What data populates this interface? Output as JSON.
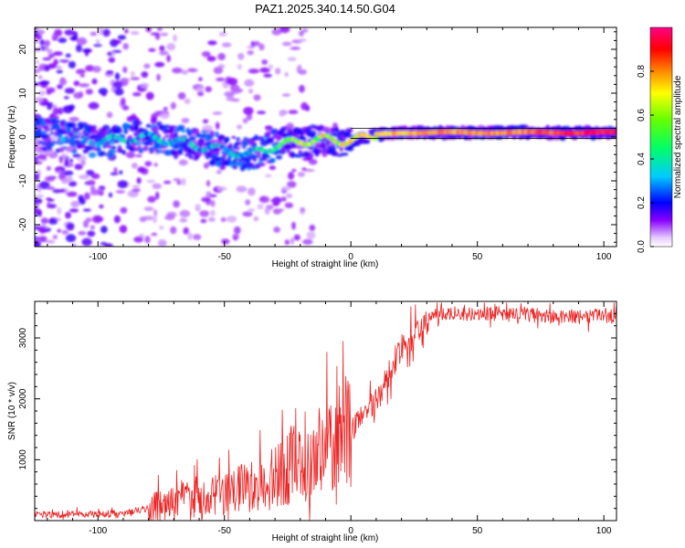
{
  "chart_data": [
    {
      "type": "heatmap",
      "title": "PAZ1.2025.340.14.50.G04",
      "xlabel": "Height of straight line (km)",
      "ylabel": "Frequency (Hz)",
      "xlim": [
        -125,
        105
      ],
      "ylim": [
        -25,
        25
      ],
      "xticks": [
        -100,
        -50,
        0,
        50,
        100
      ],
      "yticks": [
        -20,
        -10,
        0,
        10,
        20
      ],
      "colorbar": {
        "label": "Normalized spectral amplitude",
        "range": [
          0.0,
          1.0
        ],
        "ticks": [
          0.0,
          0.2,
          0.4,
          0.6,
          0.8
        ]
      },
      "ridge_frequency": {
        "x": [
          -120,
          -110,
          -100,
          -90,
          -80,
          -70,
          -60,
          -50,
          -40,
          -30,
          -20,
          -10,
          0,
          10,
          20,
          40,
          60,
          80,
          100,
          105
        ],
        "y": [
          0.5,
          0,
          -1,
          -0.5,
          0,
          -1,
          -2,
          -3,
          -4,
          -2,
          -1,
          -0.5,
          -1,
          0.5,
          1,
          1,
          1,
          1,
          1,
          1
        ],
        "amplitude": [
          0.15,
          0.2,
          0.25,
          0.3,
          0.3,
          0.3,
          0.3,
          0.3,
          0.35,
          0.45,
          0.6,
          0.65,
          0.7,
          0.75,
          0.75,
          0.8,
          0.8,
          0.85,
          0.9,
          0.9
        ]
      }
    },
    {
      "type": "line",
      "title": "",
      "xlabel": "Height of straight line (km)",
      "ylabel": "SNR (10 * v/v)",
      "xlim": [
        -125,
        105
      ],
      "ylim": [
        0,
        3600
      ],
      "xticks": [
        -100,
        -50,
        0,
        50,
        100
      ],
      "yticks": [
        1000,
        2000,
        3000
      ],
      "series": [
        {
          "name": "SNR",
          "color": "#ee2222",
          "x": [
            -125,
            -110,
            -100,
            -90,
            -80,
            -70,
            -60,
            -50,
            -40,
            -30,
            -20,
            -10,
            0,
            5,
            10,
            15,
            20,
            25,
            30,
            35,
            40,
            60,
            80,
            105
          ],
          "y": [
            100,
            100,
            100,
            130,
            200,
            320,
            380,
            420,
            560,
            700,
            980,
            1150,
            1550,
            1800,
            2000,
            2400,
            2850,
            3100,
            3300,
            3400,
            3400,
            3400,
            3350,
            3350
          ]
        }
      ]
    }
  ]
}
